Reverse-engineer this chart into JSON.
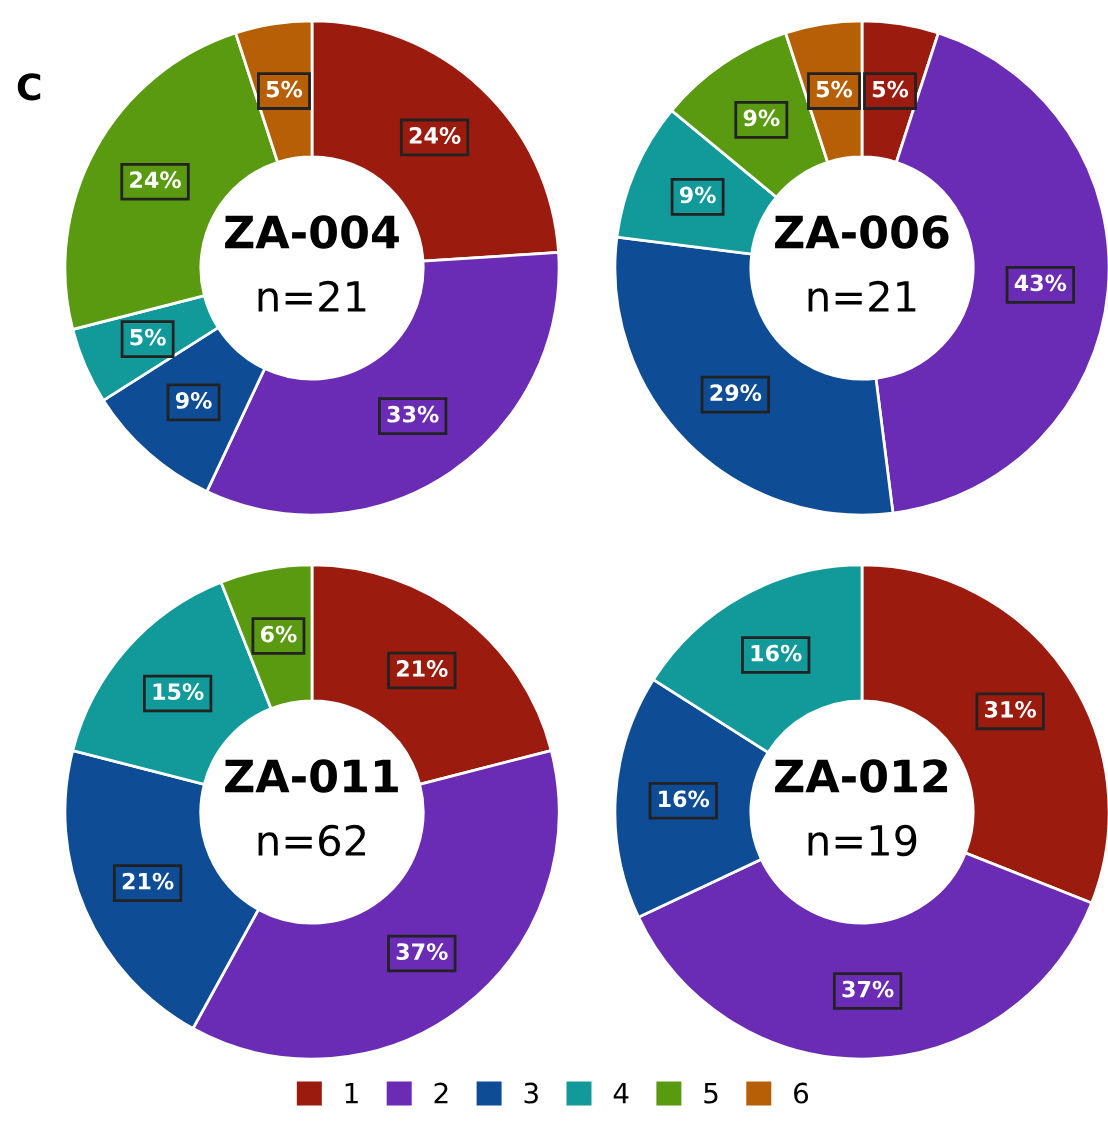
{
  "chart_data": [
    {
      "type": "donut",
      "title": "ZA-004",
      "subtitle": "n=21",
      "annotations": [
        "C"
      ],
      "categories": [
        "1",
        "2",
        "3",
        "4",
        "5",
        "6"
      ],
      "values": [
        24,
        33,
        9,
        5,
        24,
        5
      ],
      "value_labels": [
        "24%",
        "33%",
        "9%",
        "5%",
        "24%",
        "5%"
      ],
      "colors": [
        "#9b1c0e",
        "#6a2bb5",
        "#0f4c96",
        "#12999a",
        "#5a9a10",
        "#b65f07"
      ],
      "legend": "bottom"
    },
    {
      "type": "donut",
      "title": "ZA-006",
      "subtitle": "n=21",
      "values": [
        5,
        43,
        29,
        9,
        9,
        5
      ],
      "value_labels": [
        "5%",
        "43%",
        "29%",
        "9%",
        "9%",
        "5%"
      ],
      "colors": [
        "#9b1c0e",
        "#6a2bb5",
        "#0f4c96",
        "#12999a",
        "#5a9a10",
        "#b65f07"
      ]
    },
    {
      "type": "donut",
      "title": "ZA-011",
      "subtitle": "n=62",
      "values": [
        21,
        37,
        21,
        15,
        6
      ],
      "value_labels": [
        "21%",
        "37%",
        "21%",
        "15%",
        "6%"
      ],
      "colors": [
        "#9b1c0e",
        "#6a2bb5",
        "#0f4c96",
        "#12999a",
        "#5a9a10"
      ]
    },
    {
      "type": "donut",
      "title": "ZA-012",
      "subtitle": "n=19",
      "values": [
        31,
        37,
        16,
        16
      ],
      "value_labels": [
        "31%",
        "37%",
        "16%",
        "16%"
      ],
      "colors": [
        "#9b1c0e",
        "#6a2bb5",
        "#0f4c96",
        "#12999a"
      ]
    }
  ]
}
